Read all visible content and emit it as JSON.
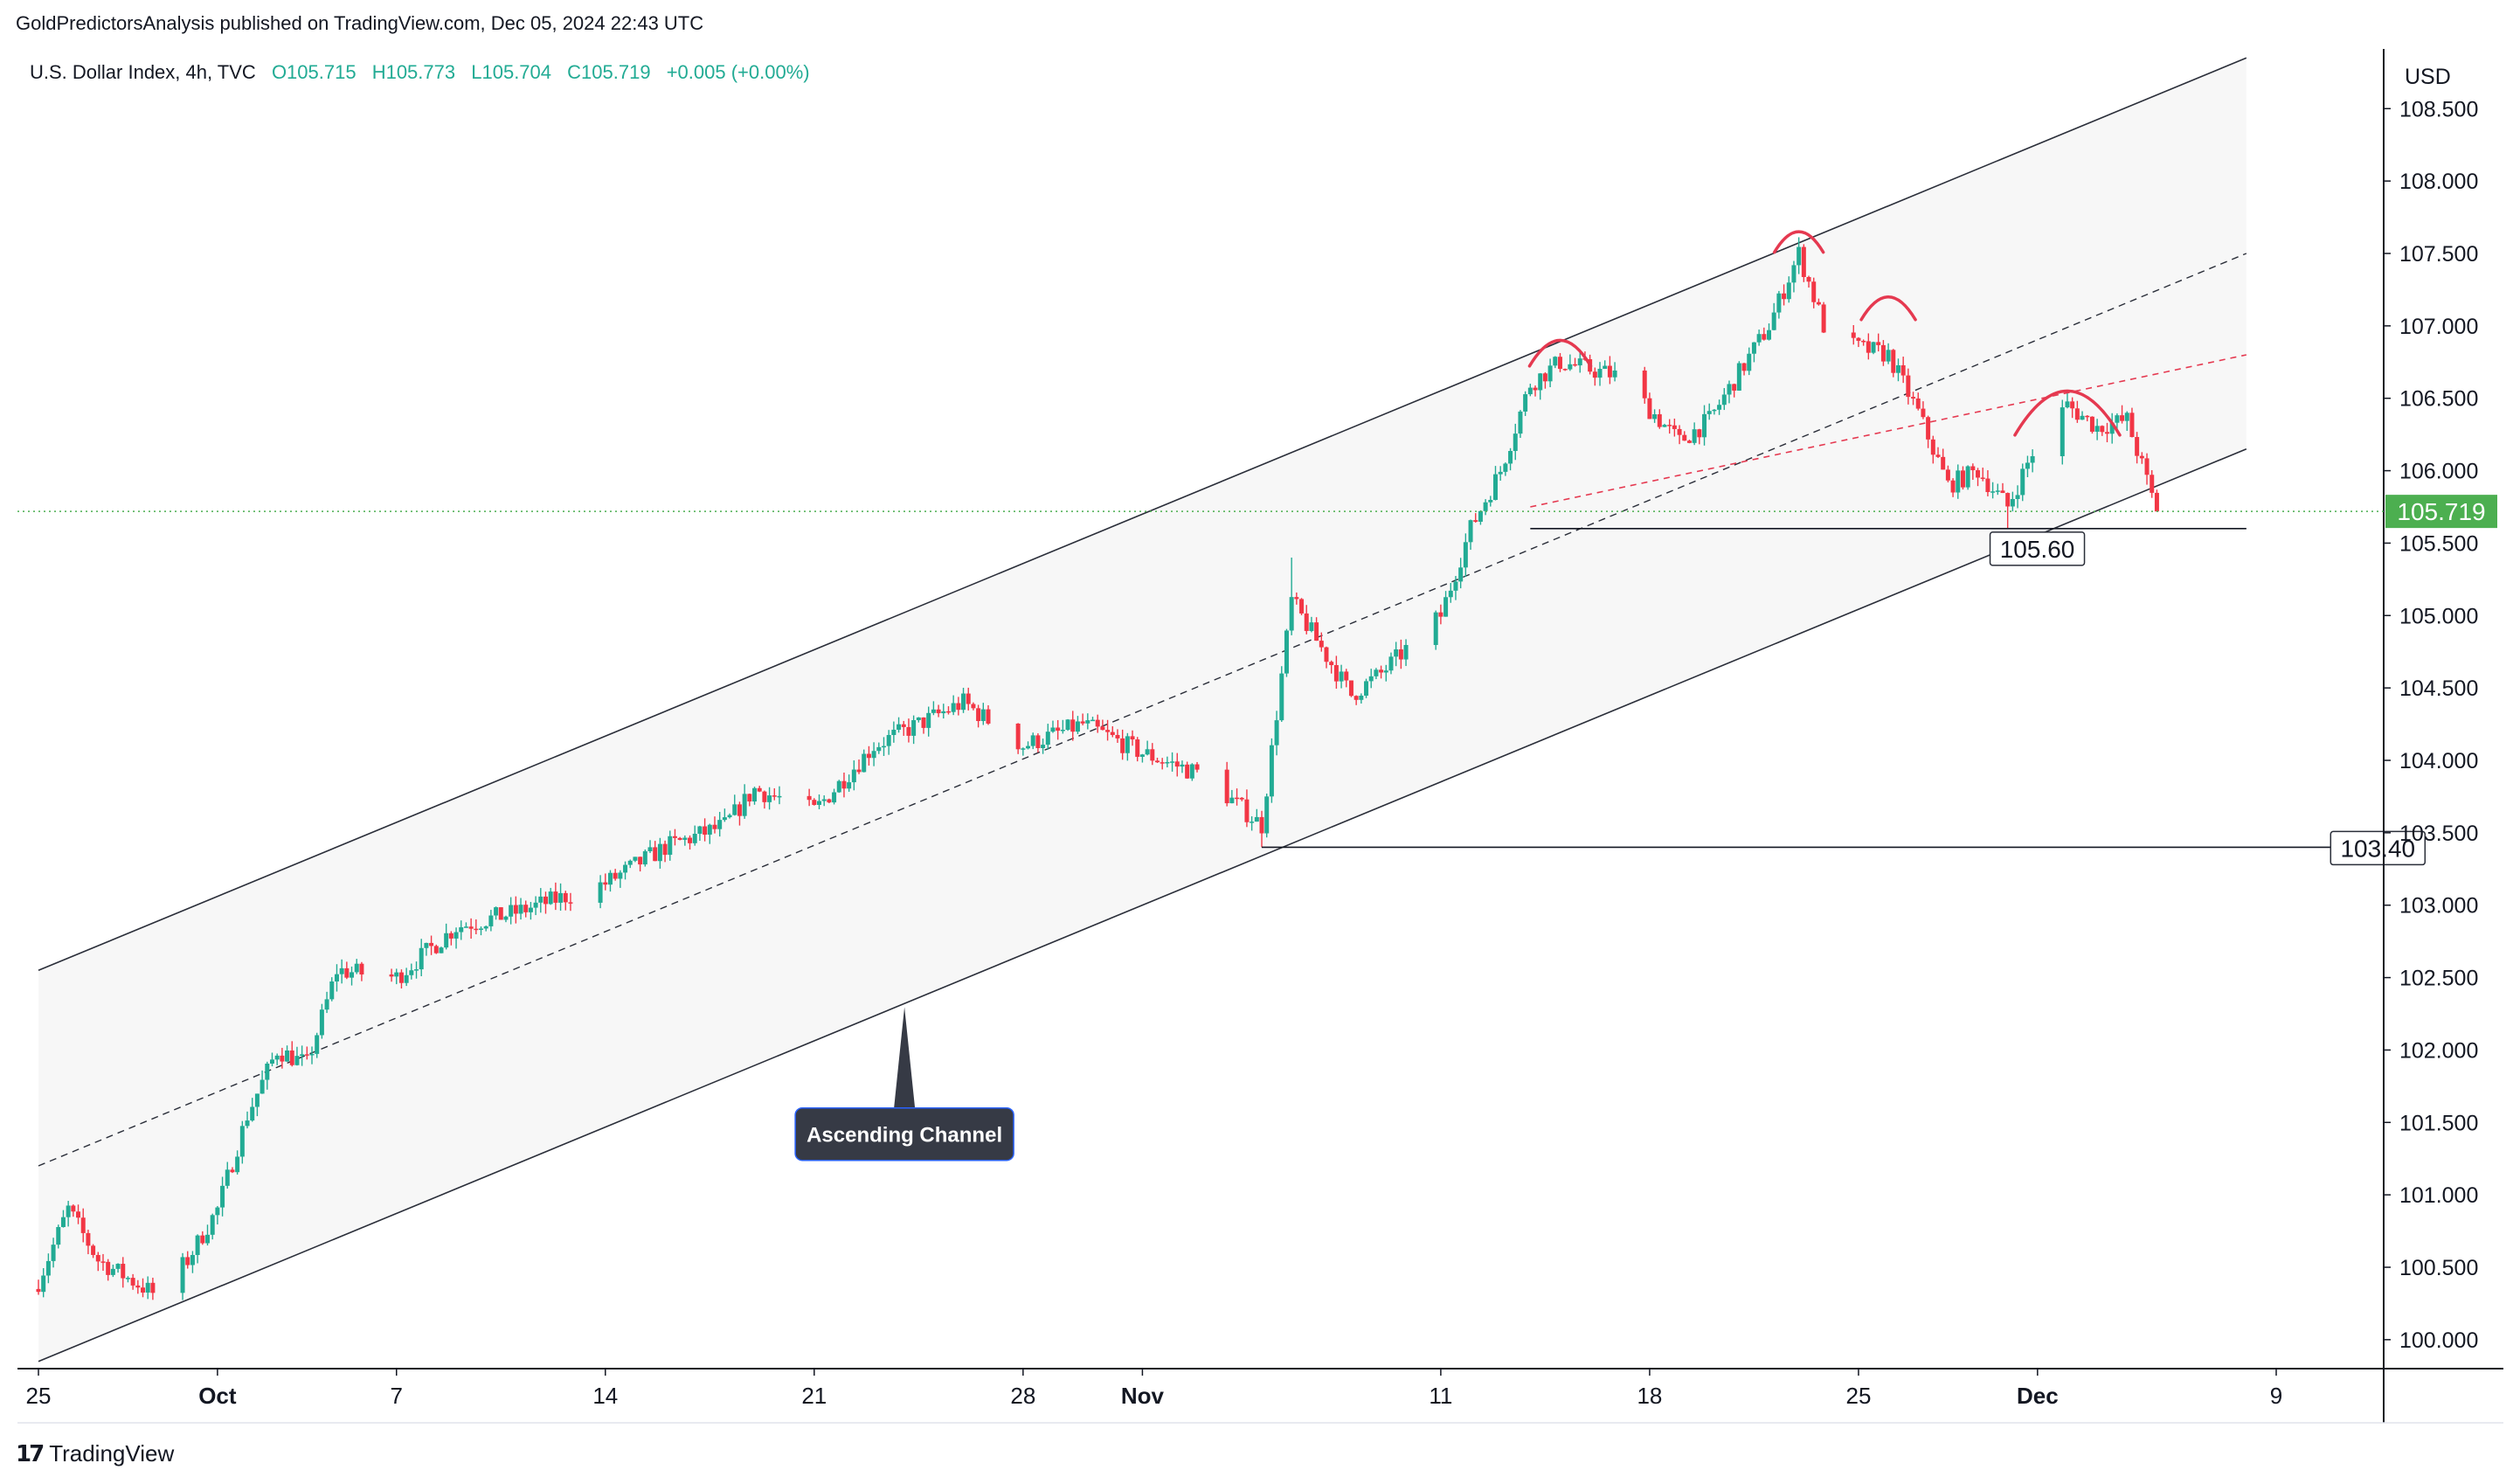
{
  "header": {
    "text": "GoldPredictorsAnalysis published on TradingView.com, Dec 05, 2024 22:43 UTC"
  },
  "legend": {
    "symbol": "U.S. Dollar Index, 4h, TVC",
    "open": "O105.715",
    "high": "H105.773",
    "low": "L105.704",
    "close": "C105.719",
    "change": "+0.005 (+0.00%)"
  },
  "branding": {
    "name": "TradingView",
    "icon": "tradingview-logo-icon"
  },
  "colors": {
    "up": "#22ab94",
    "down": "#f23645",
    "price_line": "#4caf50",
    "channel_fill": "#f7f7f7",
    "pattern_arc": "#e53950",
    "callout_bg": "#363a45",
    "callout_border": "#2962ff"
  },
  "chart_data": {
    "type": "candlestick",
    "symbol": "U.S. Dollar Index",
    "timeframe": "4h",
    "currency": "USD",
    "ylim": [
      99.8,
      108.9
    ],
    "y_ticks": [
      "108.500",
      "108.000",
      "107.500",
      "107.000",
      "106.500",
      "106.000",
      "105.500",
      "105.000",
      "104.500",
      "104.000",
      "103.500",
      "103.000",
      "102.500",
      "102.000",
      "101.500",
      "101.000",
      "100.500",
      "100.000"
    ],
    "x_ticks": [
      {
        "label": "25",
        "x": "2024-09-25",
        "bold": false
      },
      {
        "label": "Oct",
        "x": "2024-10-01",
        "bold": true
      },
      {
        "label": "7",
        "x": "2024-10-07",
        "bold": false
      },
      {
        "label": "14",
        "x": "2024-10-14",
        "bold": false
      },
      {
        "label": "21",
        "x": "2024-10-21",
        "bold": false
      },
      {
        "label": "28",
        "x": "2024-10-28",
        "bold": false
      },
      {
        "label": "Nov",
        "x": "2024-11-01",
        "bold": true
      },
      {
        "label": "11",
        "x": "2024-11-11",
        "bold": false
      },
      {
        "label": "18",
        "x": "2024-11-18",
        "bold": false
      },
      {
        "label": "25",
        "x": "2024-11-25",
        "bold": false
      },
      {
        "label": "Dec",
        "x": "2024-12-01",
        "bold": true
      },
      {
        "label": "9",
        "x": "2024-12-09",
        "bold": false
      }
    ],
    "current_price": 105.719,
    "current_price_label": "105.719",
    "close_path": [
      [
        "2024-09-25",
        100.4
      ],
      [
        "2024-09-26",
        100.9
      ],
      [
        "2024-09-27",
        100.55
      ],
      [
        "2024-09-29",
        100.3
      ],
      [
        "2024-09-30",
        100.55
      ],
      [
        "2024-10-01",
        100.9
      ],
      [
        "2024-10-02",
        101.55
      ],
      [
        "2024-10-03",
        102.0
      ],
      [
        "2024-10-04",
        101.9
      ],
      [
        "2024-10-05",
        102.55
      ],
      [
        "2024-10-07",
        102.5
      ],
      [
        "2024-10-09",
        102.85
      ],
      [
        "2024-10-11",
        102.95
      ],
      [
        "2024-10-14",
        103.15
      ],
      [
        "2024-10-16",
        103.4
      ],
      [
        "2024-10-18",
        103.55
      ],
      [
        "2024-10-19",
        103.8
      ],
      [
        "2024-10-21",
        103.65
      ],
      [
        "2024-10-23",
        104.1
      ],
      [
        "2024-10-25",
        104.3
      ],
      [
        "2024-10-26",
        104.4
      ],
      [
        "2024-10-28",
        104.1
      ],
      [
        "2024-10-30",
        104.25
      ],
      [
        "2024-11-01",
        104.05
      ],
      [
        "2024-11-03",
        103.9
      ],
      [
        "2024-11-05",
        103.55
      ],
      [
        "2024-11-06",
        105.1
      ],
      [
        "2024-11-08",
        104.45
      ],
      [
        "2024-11-09",
        104.6
      ],
      [
        "2024-11-11",
        105.0
      ],
      [
        "2024-11-12",
        105.6
      ],
      [
        "2024-11-13",
        106.0
      ],
      [
        "2024-11-14",
        106.6
      ],
      [
        "2024-11-15",
        106.75
      ],
      [
        "2024-11-17",
        106.65
      ],
      [
        "2024-11-19",
        106.2
      ],
      [
        "2024-11-20",
        106.35
      ],
      [
        "2024-11-22",
        107.0
      ],
      [
        "2024-11-23",
        107.5
      ],
      [
        "2024-11-24",
        106.9
      ],
      [
        "2024-11-26",
        106.8
      ],
      [
        "2024-11-27",
        106.4
      ],
      [
        "2024-11-28",
        105.9
      ],
      [
        "2024-11-29",
        106.0
      ],
      [
        "2024-11-30",
        105.75
      ],
      [
        "2024-12-01",
        106.2
      ],
      [
        "2024-12-02",
        106.45
      ],
      [
        "2024-12-03",
        106.3
      ],
      [
        "2024-12-04",
        106.35
      ],
      [
        "2024-12-05",
        105.719
      ]
    ],
    "notable_bars": [
      {
        "x": "2024-09-29",
        "low": 100.2
      },
      {
        "x": "2024-11-05",
        "low": 103.4
      },
      {
        "x": "2024-11-06",
        "high": 105.4
      },
      {
        "x": "2024-11-24",
        "high": 108.07
      },
      {
        "x": "2024-11-30",
        "low": 105.6
      }
    ],
    "annotations": [
      {
        "type": "channel",
        "label": "Ascending Channel",
        "lower": [
          [
            "2024-09-25",
            99.85
          ],
          [
            "2024-12-08",
            106.15
          ]
        ],
        "upper": [
          [
            "2024-09-25",
            102.55
          ],
          [
            "2024-12-08",
            108.85
          ]
        ],
        "median": [
          [
            "2024-09-25",
            101.2
          ],
          [
            "2024-12-08",
            107.5
          ]
        ]
      },
      {
        "type": "horizontal",
        "label": "105.60",
        "y": 105.6,
        "x_start": "2024-11-14",
        "x_end": "2024-12-08"
      },
      {
        "type": "horizontal",
        "label": "103.40",
        "y": 103.4,
        "x_start": "2024-11-05",
        "x_end": "2024-12-11"
      },
      {
        "type": "neckline",
        "color": "#e53950",
        "from": [
          "2024-11-14",
          105.75
        ],
        "to": [
          "2024-12-08",
          106.8
        ]
      },
      {
        "type": "arcs",
        "color": "#e53950",
        "tops": [
          [
            "2024-11-15",
            106.9
          ],
          [
            "2024-11-23",
            107.65
          ],
          [
            "2024-11-26",
            107.2
          ],
          [
            "2024-12-02",
            106.55
          ]
        ]
      }
    ]
  }
}
